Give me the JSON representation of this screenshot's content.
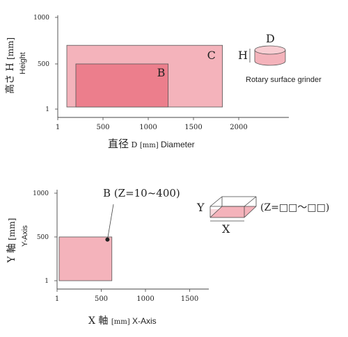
{
  "charts": [
    {
      "type": "range-rectangles",
      "xlabel_jp": "直径",
      "xlabel_var": "D",
      "xlabel_unit": "[mm]",
      "xlabel_en": "Diameter",
      "ylabel_jp": "高さ",
      "ylabel_var": "H",
      "ylabel_unit": "[mm]",
      "ylabel_en": "Height",
      "xlim": [
        0,
        2500
      ],
      "ylim": [
        1,
        1000
      ],
      "x_ticks": [
        {
          "value": 0,
          "label": "1"
        },
        {
          "value": 500,
          "label": "500"
        },
        {
          "value": 1000,
          "label": "1000"
        },
        {
          "value": 1500,
          "label": "1500"
        },
        {
          "value": 2000,
          "label": "2000"
        }
      ],
      "y_ticks": [
        {
          "value": 1,
          "label": "1"
        },
        {
          "value": 500,
          "label": "500"
        },
        {
          "value": 1000,
          "label": "1000"
        }
      ],
      "ranges": [
        {
          "label": "C",
          "x": [
            100,
            1820
          ],
          "y": [
            1,
            700
          ],
          "color": "#f4b3bb"
        },
        {
          "label": "B",
          "x": [
            200,
            1220
          ],
          "y": [
            1,
            500
          ],
          "color": "#ec7e8c"
        }
      ],
      "illustration": {
        "label_d": "D",
        "label_h": "H",
        "caption": "Rotary surface grinder",
        "fill": "#f4b3bb"
      }
    },
    {
      "type": "range-rectangles",
      "xlabel_var": "X",
      "xlabel_jp": "軸",
      "xlabel_unit": "[mm]",
      "xlabel_en": "X-Axis",
      "ylabel_var": "Y",
      "ylabel_jp": "軸",
      "ylabel_unit": "[mm]",
      "ylabel_en": "Y-Axis",
      "xlim": [
        0,
        1800
      ],
      "ylim": [
        1,
        1000
      ],
      "x_ticks": [
        {
          "value": 0,
          "label": "1"
        },
        {
          "value": 500,
          "label": "500"
        },
        {
          "value": 1000,
          "label": "1000"
        },
        {
          "value": 1500,
          "label": "1500"
        }
      ],
      "y_ticks": [
        {
          "value": 1,
          "label": "1"
        },
        {
          "value": 500,
          "label": "500"
        },
        {
          "value": 1000,
          "label": "1000"
        }
      ],
      "ranges": [
        {
          "label": "B",
          "x": [
            0,
            620
          ],
          "y": [
            1,
            500
          ],
          "color": "#f4b3bb"
        }
      ],
      "annotation": {
        "text": "B (Z=10~400)",
        "point": [
          570,
          470
        ]
      },
      "illustration": {
        "label_y": "Y",
        "label_x": "X",
        "caption": "(Z=□□〜□□)",
        "fill": "#f4b3bb"
      }
    }
  ]
}
